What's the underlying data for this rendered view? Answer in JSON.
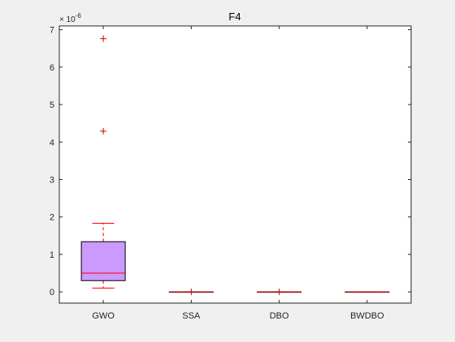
{
  "chart_data": {
    "type": "box",
    "title": "F4",
    "xlabel": "",
    "ylabel": "",
    "y_exponent_label": "× 10",
    "y_exponent": "-6",
    "ylim": [
      -0.3,
      7.1
    ],
    "yticks": [
      0,
      1,
      2,
      3,
      4,
      5,
      6,
      7
    ],
    "categories": [
      "GWO",
      "SSA",
      "DBO",
      "BWDBO"
    ],
    "boxes": [
      {
        "name": "GWO",
        "q1": 0.3,
        "median": 0.5,
        "q3": 1.34,
        "whisker_low": 0.1,
        "whisker_high": 1.83,
        "outliers": [
          6.76,
          4.29
        ]
      },
      {
        "name": "SSA",
        "q1": 0.0,
        "median": 0.0,
        "q3": 0.0,
        "whisker_low": 0.0,
        "whisker_high": 0.0,
        "outliers": [
          0.0
        ]
      },
      {
        "name": "DBO",
        "q1": 0.0,
        "median": 0.0,
        "q3": 0.0,
        "whisker_low": 0.0,
        "whisker_high": 0.0,
        "outliers": [
          0.0
        ]
      },
      {
        "name": "BWDBO",
        "q1": 0.0,
        "median": 0.0,
        "q3": 0.0,
        "whisker_low": 0.0,
        "whisker_high": 0.0,
        "outliers": []
      }
    ],
    "grid": false,
    "colors": {
      "box_fill": "#cc99ff",
      "box_edge": "#000000",
      "median": "#ff0000",
      "whisker": "#ff0000",
      "outlier": "#cc0000",
      "axes_bg": "#ffffff",
      "figure_bg": "#f0f0f0"
    }
  }
}
